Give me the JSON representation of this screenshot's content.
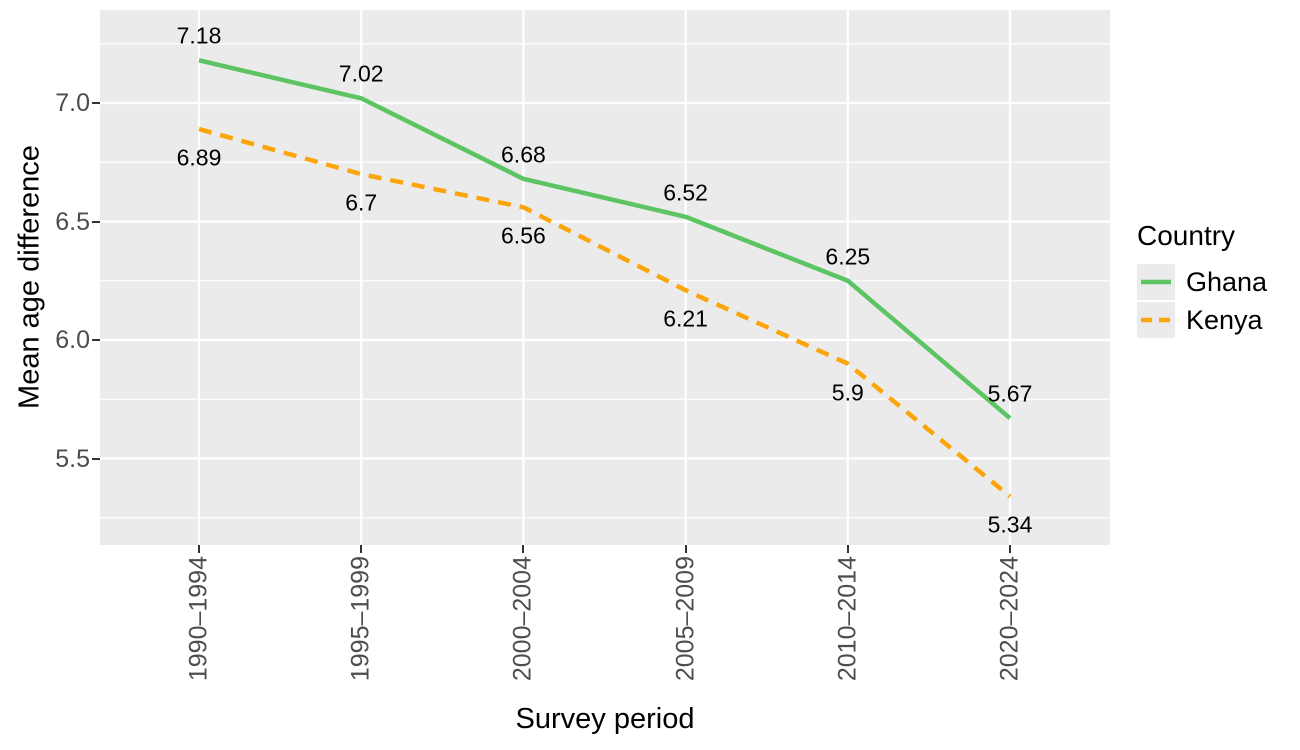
{
  "colors": {
    "background": "#FFFFFF",
    "panel_bg": "#EBEBEB",
    "grid": "#FFFFFF",
    "axis_text": "#4D4D4D",
    "tick_mark": "#333333",
    "text": "#000000"
  },
  "chart_data": {
    "type": "line",
    "title": "",
    "xlabel": "Survey period",
    "ylabel": "Mean age difference",
    "legend_title": "Country",
    "legend_position": "right",
    "grid": true,
    "x_categories": [
      "1990–1994",
      "1995–1999",
      "2000–2004",
      "2005–2009",
      "2010–2014",
      "2020–2024"
    ],
    "y_ticks": [
      "7.0",
      "6.5",
      "6.0",
      "5.5"
    ],
    "y_major": [
      7.0,
      6.5,
      6.0,
      5.5
    ],
    "y_minor": [
      7.25,
      6.75,
      6.25,
      5.75,
      5.25
    ],
    "ylim": [
      5.12,
      7.39
    ],
    "series": [
      {
        "name": "Ghana",
        "color": "#5CC463",
        "dash": "solid",
        "label_side": "above",
        "values": [
          7.18,
          7.02,
          6.68,
          6.52,
          6.25,
          5.67
        ],
        "labels": [
          "7.18",
          "7.02",
          "6.68",
          "6.52",
          "6.25",
          "5.67"
        ]
      },
      {
        "name": "Kenya",
        "color": "#FCA50A",
        "dash": "dashed",
        "label_side": "below",
        "values": [
          6.89,
          6.7,
          6.56,
          6.21,
          5.9,
          5.34
        ],
        "labels": [
          "6.89",
          "6.7",
          "6.56",
          "6.21",
          "5.9",
          "5.34"
        ]
      }
    ]
  }
}
